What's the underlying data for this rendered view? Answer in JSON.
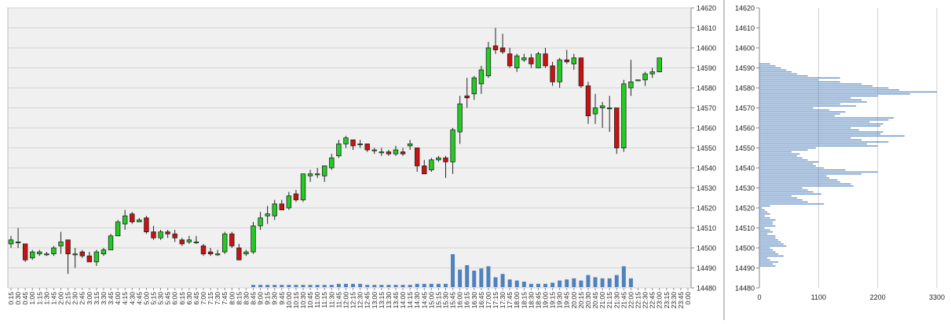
{
  "chart_data": [
    {
      "type": "candlestick",
      "title": "",
      "xlabel": "",
      "ylabel": "",
      "ylim": [
        14480,
        14620
      ],
      "y_ticks": [
        14480,
        14490,
        14500,
        14510,
        14520,
        14530,
        14540,
        14550,
        14560,
        14570,
        14580,
        14590,
        14600,
        14610,
        14620
      ],
      "x_ticks": [
        "0:15",
        "0:30",
        "0:45",
        "1:00",
        "1:15",
        "1:30",
        "1:45",
        "2:00",
        "2:15",
        "2:30",
        "2:45",
        "3:00",
        "3:15",
        "3:30",
        "3:45",
        "4:00",
        "4:15",
        "4:30",
        "4:45",
        "5:00",
        "5:15",
        "5:30",
        "5:45",
        "6:00",
        "6:15",
        "6:30",
        "6:45",
        "7:00",
        "7:15",
        "7:30",
        "7:45",
        "8:00",
        "8:15",
        "8:30",
        "8:45",
        "9:00",
        "9:15",
        "9:30",
        "9:45",
        "10:00",
        "10:15",
        "10:30",
        "10:45",
        "11:00",
        "11:15",
        "11:30",
        "11:45",
        "12:00",
        "12:15",
        "12:30",
        "12:45",
        "13:00",
        "13:15",
        "13:30",
        "13:45",
        "14:00",
        "14:15",
        "14:30",
        "14:45",
        "15:00",
        "15:15",
        "15:30",
        "15:45",
        "16:00",
        "16:15",
        "16:30",
        "16:45",
        "17:00",
        "17:15",
        "17:30",
        "17:45",
        "18:00",
        "18:15",
        "18:30",
        "18:45",
        "19:00",
        "19:15",
        "19:30",
        "19:45",
        "20:00",
        "20:15",
        "20:30",
        "20:45",
        "21:00",
        "21:15",
        "21:30",
        "21:45",
        "22:00",
        "22:15",
        "22:30",
        "22:45",
        "23:00",
        "23:15",
        "23:30",
        "23:45",
        "0:00"
      ],
      "grid": true,
      "colors": {
        "up": "#22cc22",
        "down": "#cc1111",
        "volume": "#4f81bd",
        "plot_bg": "#f0f0f0",
        "grid": "#d4d4d4"
      },
      "candles": [
        {
          "o": 14502,
          "h": 14506,
          "l": 14500,
          "c": 14504,
          "v": 0
        },
        {
          "o": 14503,
          "h": 14510,
          "l": 14500,
          "c": 14503,
          "v": 0
        },
        {
          "o": 14502,
          "h": 14502,
          "l": 14493,
          "c": 14494,
          "v": 0
        },
        {
          "o": 14495,
          "h": 14499,
          "l": 14494,
          "c": 14498,
          "v": 0
        },
        {
          "o": 14497,
          "h": 14499,
          "l": 14496,
          "c": 14498,
          "v": 0
        },
        {
          "o": 14497,
          "h": 14498,
          "l": 14496,
          "c": 14497,
          "v": 0
        },
        {
          "o": 14497,
          "h": 14501,
          "l": 14496,
          "c": 14500,
          "v": 0
        },
        {
          "o": 14501,
          "h": 14508,
          "l": 14497,
          "c": 14503,
          "v": 0
        },
        {
          "o": 14504,
          "h": 14504,
          "l": 14487,
          "c": 14497,
          "v": 0
        },
        {
          "o": 14497,
          "h": 14500,
          "l": 14490,
          "c": 14497,
          "v": 0
        },
        {
          "o": 14498,
          "h": 14499,
          "l": 14495,
          "c": 14496,
          "v": 0
        },
        {
          "o": 14496,
          "h": 14498,
          "l": 14494,
          "c": 14493,
          "v": 0
        },
        {
          "o": 14493,
          "h": 14499,
          "l": 14491,
          "c": 14498,
          "v": 0
        },
        {
          "o": 14497,
          "h": 14500,
          "l": 14496,
          "c": 14499,
          "v": 0
        },
        {
          "o": 14499,
          "h": 14507,
          "l": 14499,
          "c": 14506,
          "v": 0
        },
        {
          "o": 14506,
          "h": 14514,
          "l": 14506,
          "c": 14513,
          "v": 0
        },
        {
          "o": 14512,
          "h": 14519,
          "l": 14509,
          "c": 14516,
          "v": 0
        },
        {
          "o": 14517,
          "h": 14518,
          "l": 14512,
          "c": 14513,
          "v": 0
        },
        {
          "o": 14513,
          "h": 14515,
          "l": 14513,
          "c": 14514,
          "v": 0
        },
        {
          "o": 14515,
          "h": 14516,
          "l": 14507,
          "c": 14508,
          "v": 0
        },
        {
          "o": 14508,
          "h": 14511,
          "l": 14504,
          "c": 14505,
          "v": 0
        },
        {
          "o": 14505,
          "h": 14509,
          "l": 14504,
          "c": 14508,
          "v": 0
        },
        {
          "o": 14508,
          "h": 14509,
          "l": 14505,
          "c": 14507,
          "v": 0
        },
        {
          "o": 14507,
          "h": 14509,
          "l": 14503,
          "c": 14505,
          "v": 0
        },
        {
          "o": 14504,
          "h": 14505,
          "l": 14501,
          "c": 14502,
          "v": 0
        },
        {
          "o": 14503,
          "h": 14506,
          "l": 14502,
          "c": 14504,
          "v": 0
        },
        {
          "o": 14503,
          "h": 14506,
          "l": 14502,
          "c": 14503,
          "v": 0
        },
        {
          "o": 14501,
          "h": 14502,
          "l": 14496,
          "c": 14497,
          "v": 0
        },
        {
          "o": 14498,
          "h": 14500,
          "l": 14496,
          "c": 14497,
          "v": 0
        },
        {
          "o": 14497,
          "h": 14499,
          "l": 14496,
          "c": 14497,
          "v": 0
        },
        {
          "o": 14498,
          "h": 14508,
          "l": 14497,
          "c": 14507,
          "v": 0
        },
        {
          "o": 14507,
          "h": 14508,
          "l": 14500,
          "c": 14501,
          "v": 0
        },
        {
          "o": 14500,
          "h": 14502,
          "l": 14494,
          "c": 14494,
          "v": 0
        },
        {
          "o": 14497,
          "h": 14499,
          "l": 14496,
          "c": 14498,
          "v": 0
        },
        {
          "o": 14498,
          "h": 14513,
          "l": 14497,
          "c": 14511,
          "v": 10
        },
        {
          "o": 14511,
          "h": 14518,
          "l": 14509,
          "c": 14515,
          "v": 10
        },
        {
          "o": 14516,
          "h": 14521,
          "l": 14512,
          "c": 14517,
          "v": 10
        },
        {
          "o": 14516,
          "h": 14524,
          "l": 14514,
          "c": 14522,
          "v": 10
        },
        {
          "o": 14522,
          "h": 14524,
          "l": 14519,
          "c": 14519,
          "v": 10
        },
        {
          "o": 14520,
          "h": 14528,
          "l": 14519,
          "c": 14526,
          "v": 10
        },
        {
          "o": 14527,
          "h": 14529,
          "l": 14523,
          "c": 14524,
          "v": 10
        },
        {
          "o": 14524,
          "h": 14537,
          "l": 14523,
          "c": 14537,
          "v": 10
        },
        {
          "o": 14536,
          "h": 14539,
          "l": 14533,
          "c": 14537,
          "v": 10
        },
        {
          "o": 14537,
          "h": 14540,
          "l": 14535,
          "c": 14537,
          "v": 10
        },
        {
          "o": 14536,
          "h": 14541,
          "l": 14533,
          "c": 14541,
          "v": 10
        },
        {
          "o": 14540,
          "h": 14547,
          "l": 14539,
          "c": 14545,
          "v": 10
        },
        {
          "o": 14546,
          "h": 14554,
          "l": 14545,
          "c": 14552,
          "v": 15
        },
        {
          "o": 14552,
          "h": 14556,
          "l": 14550,
          "c": 14555,
          "v": 15
        },
        {
          "o": 14554,
          "h": 14554,
          "l": 14549,
          "c": 14551,
          "v": 15
        },
        {
          "o": 14552,
          "h": 14554,
          "l": 14550,
          "c": 14552,
          "v": 15
        },
        {
          "o": 14552,
          "h": 14552,
          "l": 14548,
          "c": 14549,
          "v": 10
        },
        {
          "o": 14549,
          "h": 14550,
          "l": 14547,
          "c": 14549,
          "v": 10
        },
        {
          "o": 14548,
          "h": 14550,
          "l": 14546,
          "c": 14548,
          "v": 10
        },
        {
          "o": 14548,
          "h": 14549,
          "l": 14546,
          "c": 14547,
          "v": 10
        },
        {
          "o": 14547,
          "h": 14551,
          "l": 14546,
          "c": 14549,
          "v": 10
        },
        {
          "o": 14548,
          "h": 14550,
          "l": 14546,
          "c": 14547,
          "v": 10
        },
        {
          "o": 14551,
          "h": 14554,
          "l": 14549,
          "c": 14552,
          "v": 10
        },
        {
          "o": 14550,
          "h": 14550,
          "l": 14538,
          "c": 14541,
          "v": 15
        },
        {
          "o": 14541,
          "h": 14544,
          "l": 14537,
          "c": 14537,
          "v": 15
        },
        {
          "o": 14539,
          "h": 14545,
          "l": 14538,
          "c": 14544,
          "v": 15
        },
        {
          "o": 14544,
          "h": 14546,
          "l": 14543,
          "c": 14545,
          "v": 15
        },
        {
          "o": 14545,
          "h": 14546,
          "l": 14535,
          "c": 14543,
          "v": 15
        },
        {
          "o": 14543,
          "h": 14560,
          "l": 14537,
          "c": 14559,
          "v": 150
        },
        {
          "o": 14558,
          "h": 14576,
          "l": 14552,
          "c": 14572,
          "v": 80
        },
        {
          "o": 14576,
          "h": 14585,
          "l": 14570,
          "c": 14575,
          "v": 100
        },
        {
          "o": 14577,
          "h": 14586,
          "l": 14574,
          "c": 14585,
          "v": 75
        },
        {
          "o": 14582,
          "h": 14591,
          "l": 14577,
          "c": 14589,
          "v": 85
        },
        {
          "o": 14586,
          "h": 14603,
          "l": 14585,
          "c": 14600,
          "v": 95
        },
        {
          "o": 14601,
          "h": 14610,
          "l": 14597,
          "c": 14599,
          "v": 45
        },
        {
          "o": 14600,
          "h": 14607,
          "l": 14597,
          "c": 14598,
          "v": 60
        },
        {
          "o": 14597,
          "h": 14600,
          "l": 14590,
          "c": 14591,
          "v": 35
        },
        {
          "o": 14590,
          "h": 14597,
          "l": 14588,
          "c": 14596,
          "v": 30
        },
        {
          "o": 14594,
          "h": 14597,
          "l": 14593,
          "c": 14595,
          "v": 25
        },
        {
          "o": 14595,
          "h": 14597,
          "l": 14590,
          "c": 14592,
          "v": 15
        },
        {
          "o": 14590,
          "h": 14598,
          "l": 14590,
          "c": 14597,
          "v": 15
        },
        {
          "o": 14597,
          "h": 14600,
          "l": 14590,
          "c": 14591,
          "v": 15
        },
        {
          "o": 14591,
          "h": 14593,
          "l": 14581,
          "c": 14583,
          "v": 20
        },
        {
          "o": 14583,
          "h": 14595,
          "l": 14580,
          "c": 14594,
          "v": 30
        },
        {
          "o": 14594,
          "h": 14599,
          "l": 14592,
          "c": 14593,
          "v": 35
        },
        {
          "o": 14592,
          "h": 14597,
          "l": 14589,
          "c": 14595,
          "v": 40
        },
        {
          "o": 14595,
          "h": 14595,
          "l": 14580,
          "c": 14581,
          "v": 30
        },
        {
          "o": 14581,
          "h": 14583,
          "l": 14562,
          "c": 14566,
          "v": 55
        },
        {
          "o": 14567,
          "h": 14577,
          "l": 14562,
          "c": 14570,
          "v": 45
        },
        {
          "o": 14570,
          "h": 14573,
          "l": 14560,
          "c": 14571,
          "v": 40
        },
        {
          "o": 14570,
          "h": 14576,
          "l": 14558,
          "c": 14570,
          "v": 40
        },
        {
          "o": 14570,
          "h": 14570,
          "l": 14547,
          "c": 14550,
          "v": 55
        },
        {
          "o": 14550,
          "h": 14584,
          "l": 14548,
          "c": 14582,
          "v": 95
        },
        {
          "o": 14580,
          "h": 14594,
          "l": 14576,
          "c": 14583,
          "v": 40
        },
        {
          "o": 14584,
          "h": 14584,
          "l": 14584,
          "c": 14584,
          "v": 0
        },
        {
          "o": 14584,
          "h": 14588,
          "l": 14581,
          "c": 14587,
          "v": 0
        },
        {
          "o": 14587,
          "h": 14590,
          "l": 14585,
          "c": 14588,
          "v": 0
        },
        {
          "o": 14588,
          "h": 14595,
          "l": 14588,
          "c": 14595,
          "v": 0
        }
      ]
    },
    {
      "type": "bar",
      "orientation": "horizontal",
      "title": "",
      "xlabel": "",
      "ylabel": "",
      "ylim": [
        14480,
        14620
      ],
      "xlim": [
        0,
        3300
      ],
      "x_ticks": [
        0,
        1100,
        2200,
        3300
      ],
      "y_ticks": [
        14480,
        14490,
        14500,
        14510,
        14520,
        14530,
        14540,
        14550,
        14560,
        14570,
        14580,
        14590,
        14600,
        14610,
        14620
      ],
      "levels_from": 14491,
      "level_step": 1,
      "values": [
        300,
        250,
        350,
        200,
        150,
        450,
        350,
        300,
        250,
        200,
        500,
        450,
        400,
        350,
        300,
        300,
        150,
        250,
        200,
        100,
        300,
        250,
        250,
        300,
        200,
        100,
        200,
        150,
        100,
        50,
        200,
        1200,
        900,
        800,
        700,
        600,
        1150,
        1000,
        900,
        800,
        1750,
        1700,
        1500,
        1450,
        1300,
        1250,
        1900,
        2200,
        1600,
        1200,
        1050,
        1000,
        1100,
        900,
        800,
        700,
        750,
        600,
        900,
        1050,
        2200,
        2000,
        2400,
        1900,
        1700,
        2700,
        2250,
        2300,
        1850,
        1700,
        2250,
        2300,
        2050,
        2400,
        2500,
        1400,
        1500,
        1600,
        1300,
        1000,
        1800,
        1500,
        2000,
        1900,
        1700,
        2200,
        2800,
        3300,
        2600,
        2400,
        2100,
        1900,
        1500,
        1100,
        1500,
        900,
        700,
        600,
        500,
        400,
        300,
        200
      ]
    }
  ]
}
